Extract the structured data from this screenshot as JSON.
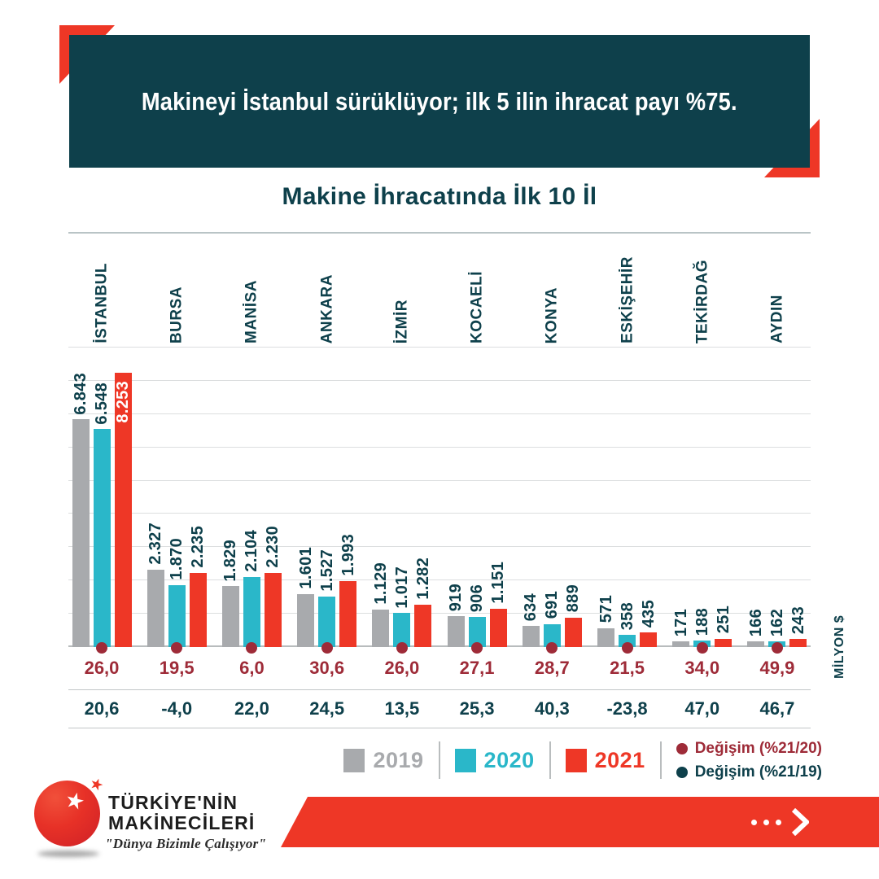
{
  "banner": {
    "title": "Makineyi İstanbul sürüklüyor; ilk 5 ilin ihracat payı %75."
  },
  "chart_title": "Makine İhracatında İlk 10 İl",
  "unit_label": "MİLYON $",
  "colors": {
    "teal": "#0e404b",
    "red": "#ee3726",
    "cyan": "#2ab7c9",
    "gray": "#a8aaad",
    "dark_red": "#9e2b38"
  },
  "chart_data": {
    "type": "bar",
    "title": "Makine İhracatında İlk 10 İl",
    "ylabel": "MİLYON $",
    "ylim": [
      0,
      9000
    ],
    "grid_step": 1000,
    "grid": true,
    "legend_position": "bottom",
    "categories": [
      "İSTANBUL",
      "BURSA",
      "MANİSA",
      "ANKARA",
      "İZMİR",
      "KOCAELİ",
      "KONYA",
      "ESKİŞEHİR",
      "TEKİRDAĞ",
      "AYDIN"
    ],
    "series": [
      {
        "name": "2019",
        "color_key": "gray",
        "values": [
          6843,
          2327,
          1829,
          1601,
          1129,
          919,
          634,
          571,
          171,
          166
        ],
        "labels": [
          "6.843",
          "2.327",
          "1.829",
          "1.601",
          "1.129",
          "919",
          "634",
          "571",
          "171",
          "166"
        ]
      },
      {
        "name": "2020",
        "color_key": "cyan",
        "values": [
          6548,
          1870,
          2104,
          1527,
          1017,
          906,
          691,
          358,
          188,
          162
        ],
        "labels": [
          "6.548",
          "1.870",
          "2.104",
          "1.527",
          "1.017",
          "906",
          "691",
          "358",
          "188",
          "162"
        ]
      },
      {
        "name": "2021",
        "color_key": "red",
        "values": [
          8253,
          2235,
          2230,
          1993,
          1282,
          1151,
          889,
          435,
          251,
          243
        ],
        "labels": [
          "8.253",
          "2.235",
          "2.230",
          "1.993",
          "1.282",
          "1.151",
          "889",
          "435",
          "251",
          "243"
        ]
      }
    ],
    "change_rows": [
      {
        "name": "Değişim (%21/20)",
        "color_key": "dark_red",
        "values": [
          26.0,
          19.5,
          6.0,
          30.6,
          26.0,
          27.1,
          28.7,
          21.5,
          34.0,
          49.9
        ],
        "labels": [
          "26,0",
          "19,5",
          "6,0",
          "30,6",
          "26,0",
          "27,1",
          "28,7",
          "21,5",
          "34,0",
          "49,9"
        ]
      },
      {
        "name": "Değişim (%21/19)",
        "color_key": "teal",
        "values": [
          20.6,
          -4.0,
          22.0,
          24.5,
          13.5,
          25.3,
          40.3,
          -23.8,
          47.0,
          46.7
        ],
        "labels": [
          "20,6",
          "-4,0",
          "22,0",
          "24,5",
          "13,5",
          "25,3",
          "40,3",
          "-23,8",
          "47,0",
          "46,7"
        ]
      }
    ]
  },
  "footer": {
    "brand_line1": "TÜRKİYE'NİN",
    "brand_line2": "MAKİNECİLERİ",
    "slogan": "\"Dünya Bizimle Çalışıyor\""
  }
}
